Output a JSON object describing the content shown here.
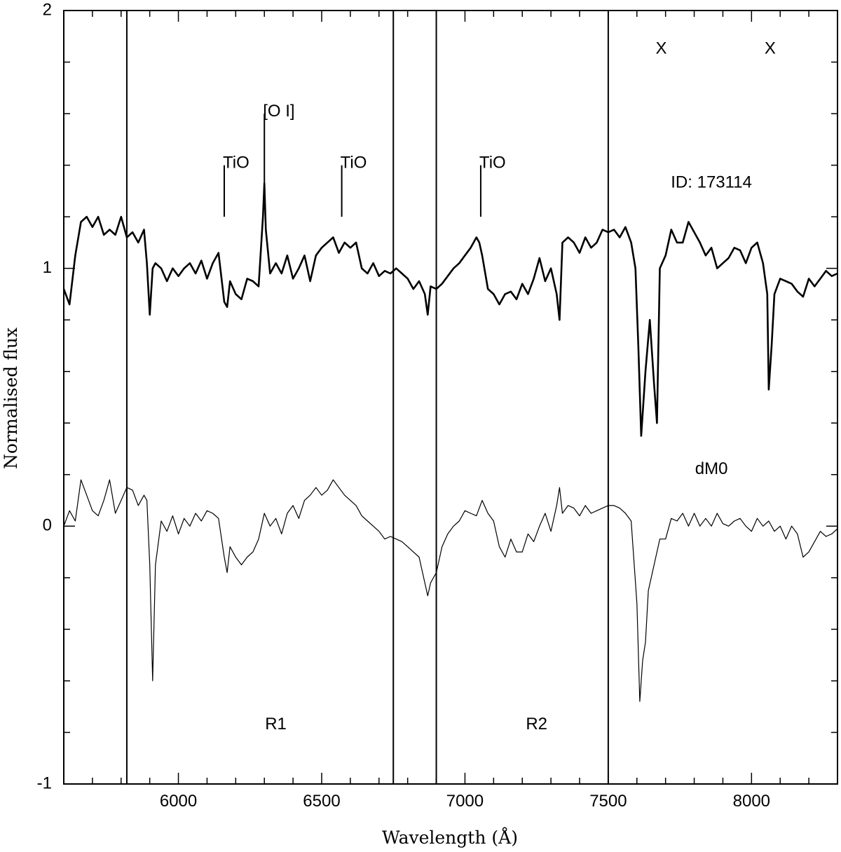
{
  "chart_data": {
    "type": "line",
    "title": "",
    "xlabel": "Wavelength (Å)",
    "ylabel": "Normalised flux",
    "xlim": [
      5600,
      8300
    ],
    "ylim": [
      -1,
      2
    ],
    "x_ticks": [
      6000,
      6500,
      7000,
      7500,
      8000
    ],
    "x_minor_step": 100,
    "y_ticks": [
      -1,
      0,
      1,
      2
    ],
    "y_minor_step": 0.2,
    "grid": false,
    "legend": "none",
    "line_color": "#000000",
    "region_boundaries": [
      5820,
      6750,
      6900,
      7500
    ],
    "region_labels": [
      {
        "text": "R1",
        "x": 6340,
        "y": -0.77
      },
      {
        "text": "R2",
        "x": 7250,
        "y": -0.77
      }
    ],
    "annotations": [
      {
        "text": "[O I]",
        "x": 6300,
        "y": 1.6,
        "tick_from": 1.3,
        "tick_to": 1.6
      },
      {
        "text": "TiO",
        "x": 6160,
        "y": 1.4,
        "tick_from": 1.2,
        "tick_to": 1.4
      },
      {
        "text": "TiO",
        "x": 6570,
        "y": 1.4,
        "tick_from": 1.2,
        "tick_to": 1.4
      },
      {
        "text": "TiO",
        "x": 7055,
        "y": 1.4,
        "tick_from": 1.2,
        "tick_to": 1.4
      },
      {
        "text": "X",
        "x": 7685,
        "y": 1.85
      },
      {
        "text": "X",
        "x": 8065,
        "y": 1.85
      },
      {
        "text": "ID: 173114",
        "x": 7860,
        "y": 1.33
      },
      {
        "text": "dM0",
        "x": 7860,
        "y": 0.22
      }
    ],
    "series": [
      {
        "name": "ID: 173114",
        "stroke": 2.6,
        "x": [
          5600,
          5620,
          5640,
          5660,
          5680,
          5700,
          5720,
          5740,
          5760,
          5780,
          5800,
          5820,
          5840,
          5860,
          5880,
          5890,
          5900,
          5910,
          5920,
          5940,
          5960,
          5980,
          6000,
          6020,
          6040,
          6060,
          6080,
          6100,
          6120,
          6140,
          6160,
          6170,
          6180,
          6200,
          6220,
          6240,
          6260,
          6280,
          6295,
          6300,
          6305,
          6320,
          6340,
          6360,
          6380,
          6400,
          6420,
          6440,
          6460,
          6480,
          6500,
          6520,
          6540,
          6560,
          6580,
          6600,
          6620,
          6640,
          6660,
          6680,
          6700,
          6720,
          6740,
          6760,
          6780,
          6800,
          6820,
          6840,
          6860,
          6870,
          6880,
          6900,
          6920,
          6940,
          6960,
          6980,
          7000,
          7020,
          7040,
          7050,
          7060,
          7080,
          7100,
          7120,
          7140,
          7160,
          7180,
          7200,
          7220,
          7240,
          7260,
          7280,
          7300,
          7320,
          7330,
          7340,
          7360,
          7380,
          7400,
          7420,
          7440,
          7460,
          7480,
          7500,
          7520,
          7540,
          7560,
          7580,
          7595,
          7605,
          7615,
          7630,
          7645,
          7660,
          7670,
          7680,
          7700,
          7720,
          7740,
          7760,
          7780,
          7800,
          7820,
          7840,
          7860,
          7880,
          7900,
          7920,
          7940,
          7960,
          7980,
          8000,
          8020,
          8040,
          8055,
          8060,
          8070,
          8080,
          8100,
          8120,
          8140,
          8160,
          8180,
          8200,
          8220,
          8240,
          8260,
          8280,
          8300
        ],
        "y": [
          0.92,
          0.86,
          1.05,
          1.18,
          1.2,
          1.16,
          1.2,
          1.13,
          1.15,
          1.13,
          1.2,
          1.12,
          1.14,
          1.1,
          1.15,
          1.02,
          0.82,
          1.0,
          1.02,
          1.0,
          0.95,
          1.0,
          0.97,
          1.0,
          1.02,
          0.98,
          1.03,
          0.96,
          1.02,
          1.06,
          0.87,
          0.85,
          0.95,
          0.9,
          0.88,
          0.96,
          0.95,
          0.93,
          1.2,
          1.33,
          1.15,
          0.98,
          1.02,
          0.98,
          1.05,
          0.96,
          1.0,
          1.05,
          0.95,
          1.05,
          1.08,
          1.1,
          1.12,
          1.06,
          1.1,
          1.08,
          1.1,
          1.0,
          0.98,
          1.02,
          0.97,
          0.99,
          0.98,
          1.0,
          0.98,
          0.96,
          0.92,
          0.95,
          0.9,
          0.82,
          0.93,
          0.92,
          0.94,
          0.97,
          1.0,
          1.02,
          1.05,
          1.08,
          1.12,
          1.1,
          1.05,
          0.92,
          0.9,
          0.86,
          0.9,
          0.91,
          0.88,
          0.94,
          0.9,
          0.96,
          1.04,
          0.95,
          1.0,
          0.9,
          0.8,
          1.1,
          1.12,
          1.1,
          1.06,
          1.12,
          1.08,
          1.1,
          1.15,
          1.14,
          1.15,
          1.12,
          1.16,
          1.1,
          1.0,
          0.7,
          0.35,
          0.6,
          0.8,
          0.55,
          0.4,
          1.0,
          1.05,
          1.15,
          1.1,
          1.1,
          1.18,
          1.14,
          1.1,
          1.05,
          1.08,
          1.0,
          1.02,
          1.04,
          1.08,
          1.07,
          1.02,
          1.08,
          1.1,
          1.02,
          0.9,
          0.53,
          0.7,
          0.9,
          0.96,
          0.95,
          0.94,
          0.91,
          0.89,
          0.96,
          0.93,
          0.96,
          0.99,
          0.97,
          0.98
        ]
      },
      {
        "name": "dM0",
        "stroke": 1.2,
        "x": [
          5600,
          5620,
          5640,
          5660,
          5680,
          5700,
          5720,
          5740,
          5760,
          5780,
          5800,
          5820,
          5840,
          5860,
          5880,
          5890,
          5900,
          5910,
          5920,
          5940,
          5960,
          5980,
          6000,
          6020,
          6040,
          6060,
          6080,
          6100,
          6120,
          6140,
          6160,
          6170,
          6180,
          6200,
          6220,
          6240,
          6260,
          6280,
          6300,
          6320,
          6340,
          6360,
          6380,
          6400,
          6420,
          6440,
          6460,
          6480,
          6500,
          6520,
          6540,
          6560,
          6580,
          6600,
          6620,
          6640,
          6660,
          6680,
          6700,
          6720,
          6740,
          6760,
          6780,
          6800,
          6820,
          6840,
          6860,
          6870,
          6880,
          6900,
          6920,
          6940,
          6960,
          6980,
          7000,
          7020,
          7040,
          7060,
          7080,
          7100,
          7120,
          7140,
          7160,
          7180,
          7200,
          7220,
          7240,
          7260,
          7280,
          7300,
          7320,
          7330,
          7340,
          7360,
          7380,
          7400,
          7420,
          7440,
          7460,
          7480,
          7500,
          7520,
          7540,
          7560,
          7580,
          7600,
          7610,
          7620,
          7630,
          7640,
          7660,
          7680,
          7700,
          7720,
          7740,
          7760,
          7780,
          7800,
          7820,
          7840,
          7860,
          7880,
          7900,
          7920,
          7940,
          7960,
          7980,
          8000,
          8020,
          8040,
          8060,
          8080,
          8100,
          8120,
          8140,
          8160,
          8180,
          8200,
          8220,
          8240,
          8260,
          8280,
          8300
        ],
        "y": [
          0.0,
          0.06,
          0.02,
          0.18,
          0.12,
          0.06,
          0.04,
          0.1,
          0.18,
          0.05,
          0.1,
          0.15,
          0.14,
          0.08,
          0.12,
          0.1,
          -0.15,
          -0.6,
          -0.15,
          0.02,
          -0.02,
          0.04,
          -0.03,
          0.03,
          0.0,
          0.05,
          0.02,
          0.06,
          0.05,
          0.03,
          -0.12,
          -0.18,
          -0.08,
          -0.12,
          -0.15,
          -0.12,
          -0.1,
          -0.05,
          0.05,
          0.0,
          0.03,
          -0.03,
          0.05,
          0.08,
          0.03,
          0.1,
          0.12,
          0.15,
          0.12,
          0.14,
          0.18,
          0.15,
          0.12,
          0.1,
          0.08,
          0.04,
          0.02,
          0.0,
          -0.02,
          -0.05,
          -0.04,
          -0.05,
          -0.06,
          -0.08,
          -0.1,
          -0.12,
          -0.22,
          -0.27,
          -0.22,
          -0.18,
          -0.08,
          -0.03,
          0.0,
          0.02,
          0.06,
          0.05,
          0.04,
          0.1,
          0.05,
          0.02,
          -0.08,
          -0.12,
          -0.05,
          -0.1,
          -0.1,
          -0.03,
          -0.06,
          0.0,
          0.05,
          -0.02,
          0.08,
          0.15,
          0.05,
          0.08,
          0.07,
          0.04,
          0.08,
          0.05,
          0.06,
          0.07,
          0.08,
          0.08,
          0.07,
          0.05,
          0.02,
          -0.3,
          -0.68,
          -0.52,
          -0.45,
          -0.25,
          -0.15,
          -0.05,
          -0.05,
          0.03,
          0.02,
          0.05,
          0.0,
          0.05,
          0.0,
          0.03,
          0.0,
          0.05,
          0.01,
          0.0,
          0.02,
          0.03,
          0.0,
          -0.02,
          0.03,
          0.0,
          0.02,
          -0.02,
          0.0,
          -0.05,
          0.0,
          -0.03,
          -0.12,
          -0.1,
          -0.06,
          -0.02,
          -0.04,
          -0.03,
          -0.01
        ]
      }
    ]
  }
}
